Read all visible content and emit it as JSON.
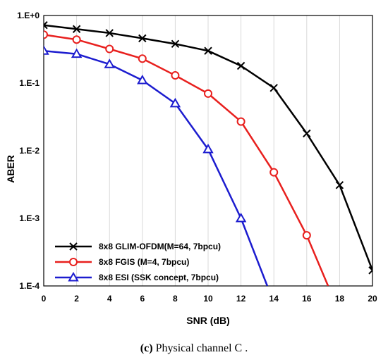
{
  "caption": {
    "label": "(c)",
    "text": "Physical channel C ."
  },
  "chart_data": {
    "type": "line",
    "xlabel": "SNR (dB)",
    "ylabel": "ABER",
    "y_scale": "log",
    "xlim": [
      0,
      20
    ],
    "ylim": [
      0.0001,
      1
    ],
    "x_ticks": [
      0,
      2,
      4,
      6,
      8,
      10,
      12,
      14,
      16,
      18,
      20
    ],
    "y_ticks": [
      {
        "value": 1,
        "label": "1.E+0"
      },
      {
        "value": 0.1,
        "label": "1.E-1"
      },
      {
        "value": 0.01,
        "label": "1.E-2"
      },
      {
        "value": 0.001,
        "label": "1.E-3"
      },
      {
        "value": 0.0001,
        "label": "1.E-4"
      }
    ],
    "grid": "vertical",
    "legend_position": "bottom-left",
    "series": [
      {
        "name": "8x8 GLIM-OFDM(M=64, 7bpcu)",
        "color": "#000000",
        "marker": "x",
        "x": [
          0,
          2,
          4,
          6,
          8,
          10,
          12,
          14,
          16,
          18,
          20
        ],
        "y": [
          0.72,
          0.63,
          0.55,
          0.46,
          0.38,
          0.3,
          0.18,
          0.085,
          0.018,
          0.0031,
          0.00017
        ]
      },
      {
        "name": "8x8 FGIS (M=4, 7bpcu)",
        "color": "#e8201e",
        "marker": "o",
        "x": [
          0,
          2,
          4,
          6,
          8,
          10,
          12,
          14,
          16,
          17.3
        ],
        "y": [
          0.52,
          0.44,
          0.32,
          0.23,
          0.13,
          0.07,
          0.027,
          0.0048,
          0.00056,
          0.0001
        ],
        "markers_count": 9
      },
      {
        "name": "8x8 ESI (SSK concept, 7bpcu)",
        "color": "#1c1ccf",
        "marker": "triangle",
        "x": [
          0,
          2,
          4,
          6,
          8,
          10,
          12,
          13.6
        ],
        "y": [
          0.3,
          0.27,
          0.19,
          0.11,
          0.05,
          0.0105,
          0.001,
          0.0001
        ],
        "markers_count": 7
      }
    ]
  }
}
